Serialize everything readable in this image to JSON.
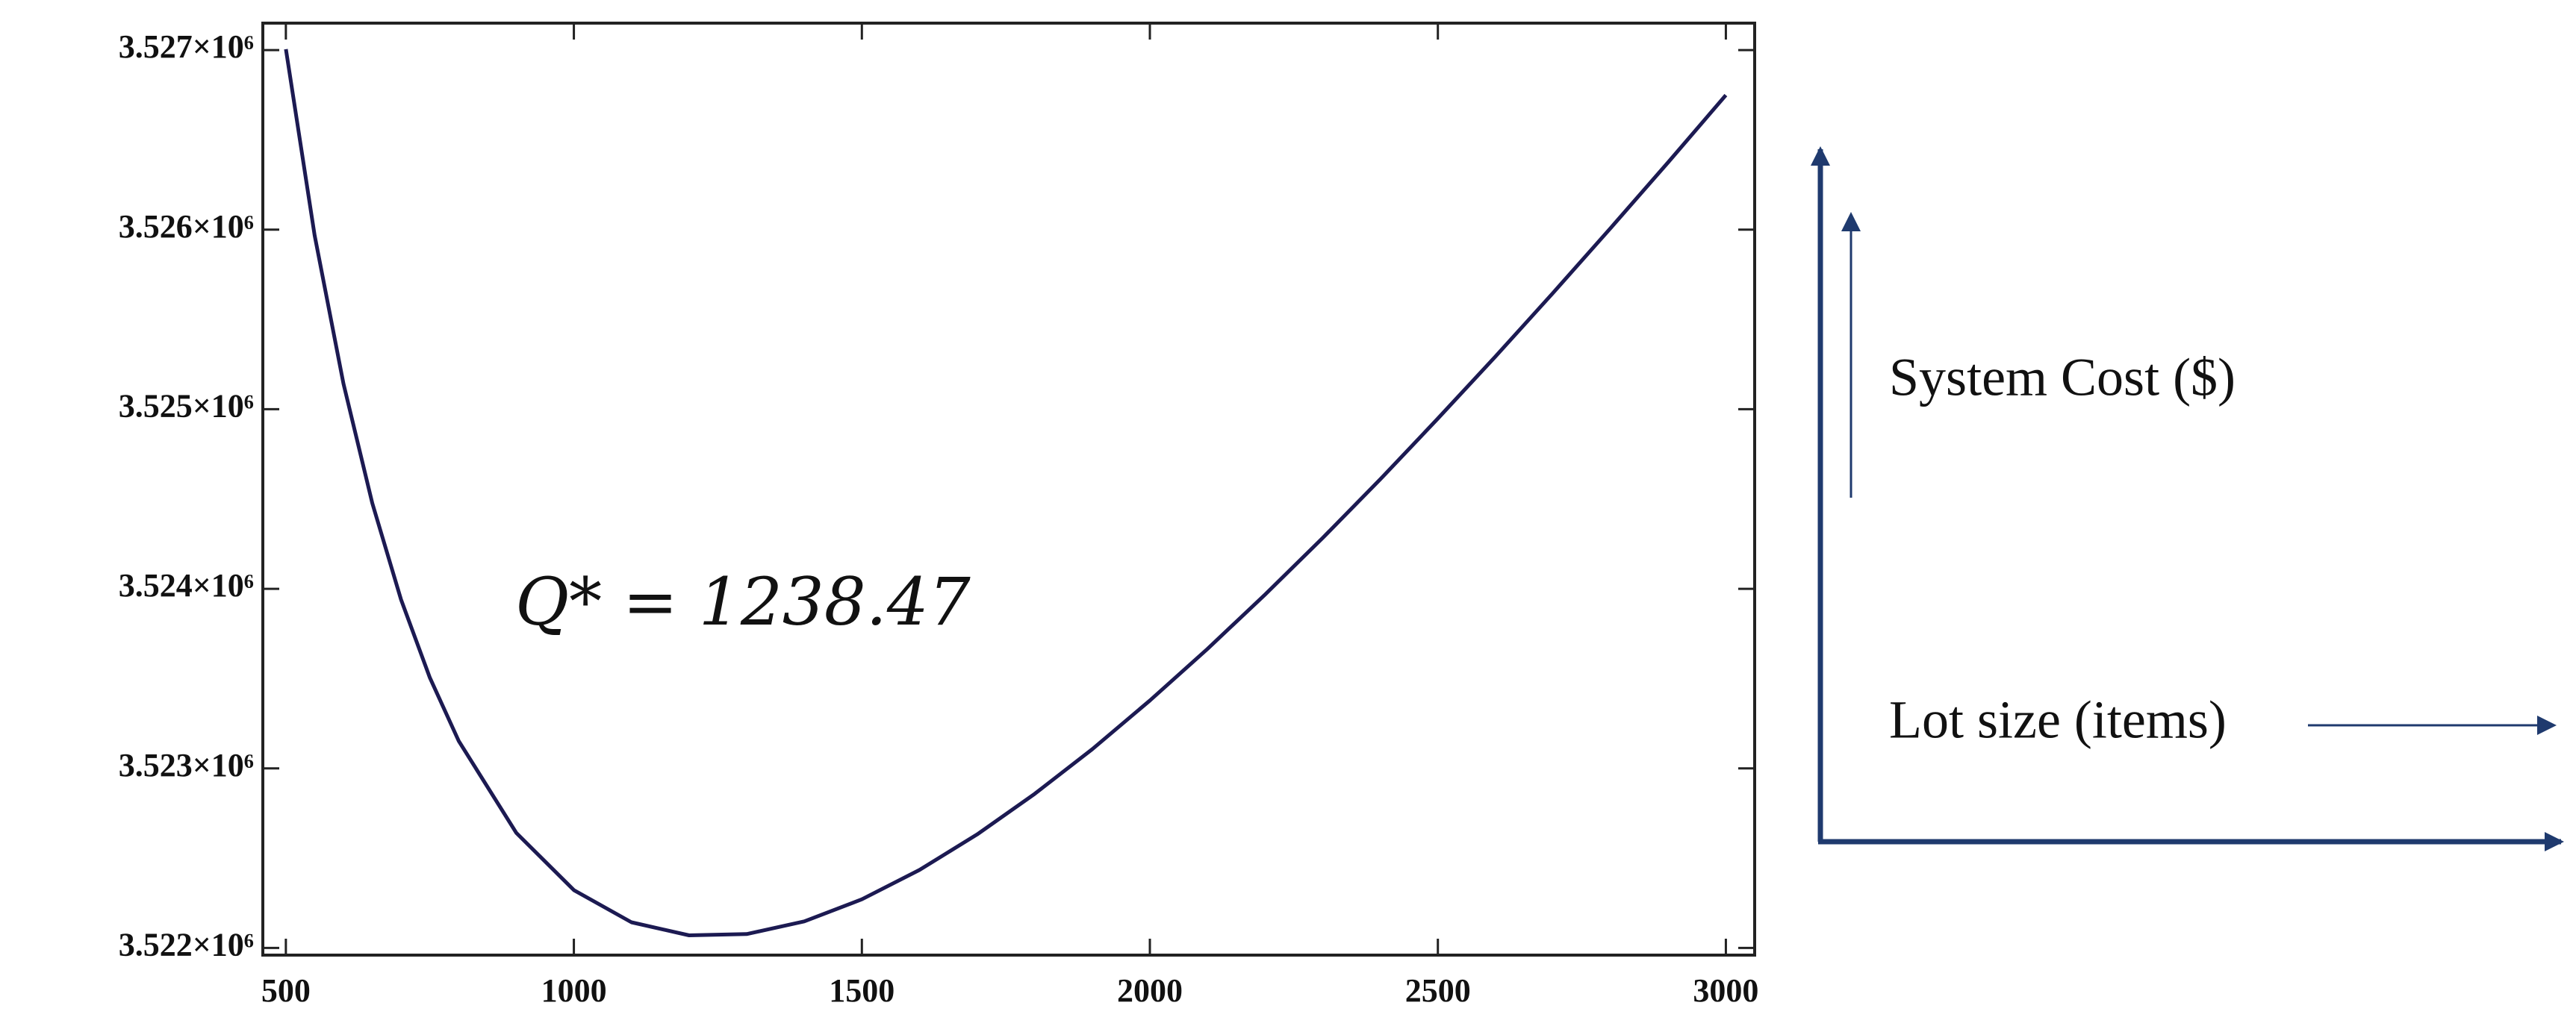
{
  "chart_data": {
    "type": "line",
    "annotation": "Q* = 1238.47",
    "y_label": "System Cost ($)",
    "x_label": "Lot size (items)",
    "color": "#1c1a52",
    "x": [
      500,
      550,
      600,
      650,
      700,
      750,
      800,
      900,
      1000,
      1100,
      1200,
      1300,
      1400,
      1500,
      1600,
      1700,
      1800,
      1900,
      2000,
      2100,
      2200,
      2300,
      2400,
      2500,
      2600,
      2700,
      2800,
      2900,
      3000
    ],
    "values": [
      3527005,
      3525968,
      3525142,
      3524477,
      3523940,
      3523505,
      3523153,
      3522641,
      3522322,
      3522143,
      3522070,
      3522077,
      3522148,
      3522271,
      3522434,
      3522632,
      3522858,
      3523107,
      3523378,
      3523665,
      3523968,
      3524283,
      3524610,
      3524948,
      3525294,
      3525648,
      3526009,
      3526376,
      3526749
    ],
    "xlim": [
      460,
      3050
    ],
    "ylim": [
      3521960,
      3527150
    ],
    "xticks": [
      500,
      1000,
      1500,
      2000,
      2500,
      3000
    ],
    "yticks": [
      {
        "value": 3522000,
        "label": "3.522×10⁶"
      },
      {
        "value": 3523000,
        "label": "3.523×10⁶"
      },
      {
        "value": 3524000,
        "label": "3.524×10⁶"
      },
      {
        "value": 3525000,
        "label": "3.525×10⁶"
      },
      {
        "value": 3526000,
        "label": "3.526×10⁶"
      },
      {
        "value": 3527000,
        "label": "3.527×10⁶"
      }
    ]
  }
}
